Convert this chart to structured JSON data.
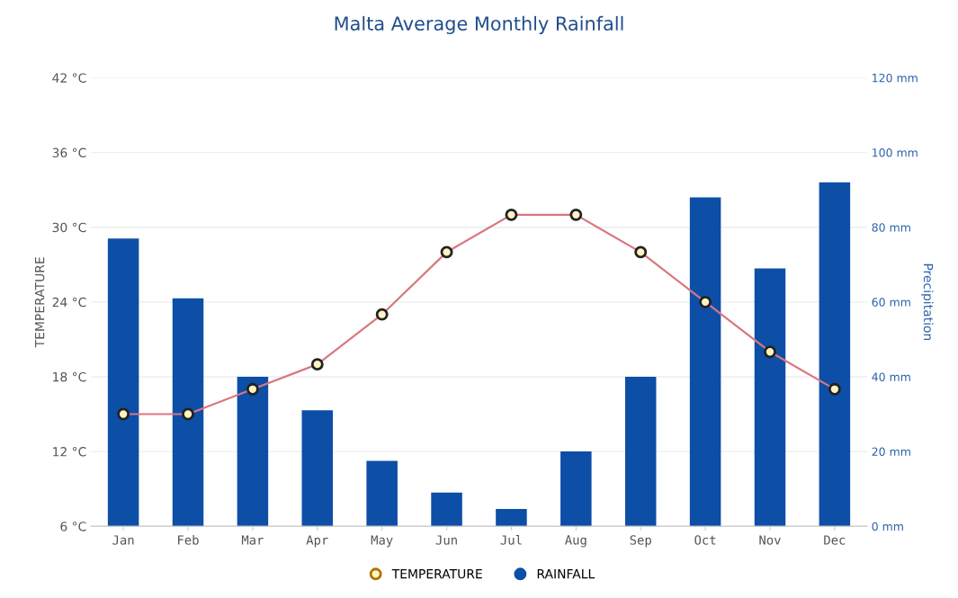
{
  "chart_data": {
    "type": "bar",
    "title": "Malta Average Monthly Rainfall",
    "ylabel": "TEMPERATURE",
    "y2label": "Precipitation",
    "categories": [
      "Jan",
      "Feb",
      "Mar",
      "Apr",
      "May",
      "Jun",
      "Jul",
      "Aug",
      "Sep",
      "Oct",
      "Nov",
      "Dec"
    ],
    "series": [
      {
        "name": "TEMPERATURE",
        "type": "line",
        "color": "#d9777f",
        "marker": "circle",
        "values": [
          15,
          15,
          17,
          19,
          23,
          28,
          31,
          31,
          28,
          24,
          20,
          17
        ]
      },
      {
        "name": "RAINFALL",
        "axis": "y2",
        "color": "#0d4ea6",
        "values": [
          77,
          61,
          40,
          31,
          17.5,
          9,
          4.6,
          20,
          40,
          88,
          69,
          92
        ]
      }
    ],
    "ylim": [
      6,
      42
    ],
    "yticks": [
      {
        "value": 6,
        "label": "6 °C"
      },
      {
        "value": 12,
        "label": "12 °C"
      },
      {
        "value": 18,
        "label": "18 °C"
      },
      {
        "value": 24,
        "label": "24 °C"
      },
      {
        "value": 30,
        "label": "30 °C"
      },
      {
        "value": 36,
        "label": "36 °C"
      },
      {
        "value": 42,
        "label": "42 °C"
      }
    ],
    "y2lim": [
      0,
      120
    ],
    "y2ticks": [
      {
        "value": 0,
        "label": "0 mm"
      },
      {
        "value": 20,
        "label": "20 mm"
      },
      {
        "value": 40,
        "label": "40 mm"
      },
      {
        "value": 60,
        "label": "60 mm"
      },
      {
        "value": 80,
        "label": "80 mm"
      },
      {
        "value": 100,
        "label": "100 mm"
      },
      {
        "value": 120,
        "label": "120 mm"
      }
    ],
    "grid": "y",
    "legend": "bottom"
  }
}
